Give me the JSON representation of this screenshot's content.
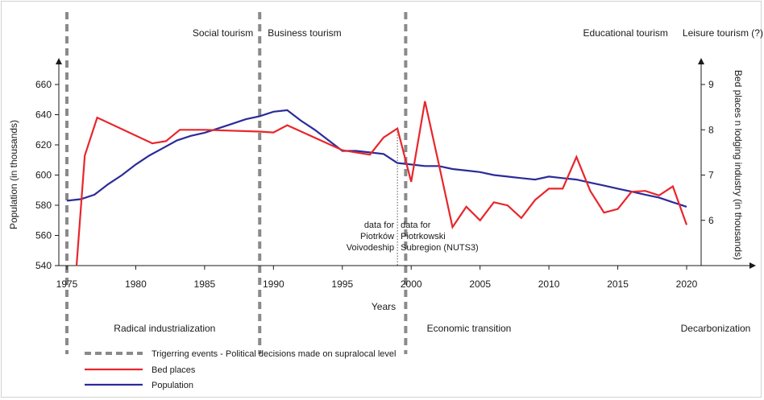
{
  "chart_data": {
    "type": "line",
    "xlabel": "Years",
    "ylabel_left": "Population (in thousands)",
    "ylabel_right": "Bed places n lodging industry (in thousands)",
    "x_ticks": [
      1975,
      1980,
      1985,
      1990,
      1995,
      2000,
      2005,
      2010,
      2015,
      2020
    ],
    "xlim": [
      1975,
      2021
    ],
    "y_left_ticks": [
      540,
      560,
      580,
      600,
      620,
      640,
      660
    ],
    "y_left_range": [
      540,
      660
    ],
    "y_right_ticks": [
      6,
      7,
      8,
      9
    ],
    "y_right_range": [
      5.0,
      9.0
    ],
    "grid": false,
    "series": [
      {
        "name": "Population",
        "axis": "left",
        "color": "#2b2b9a",
        "points": [
          [
            1975,
            583
          ],
          [
            1976,
            584
          ],
          [
            1977,
            587
          ],
          [
            1978,
            594
          ],
          [
            1979,
            600
          ],
          [
            1980,
            607
          ],
          [
            1981,
            613
          ],
          [
            1982,
            618
          ],
          [
            1983,
            623
          ],
          [
            1984,
            626
          ],
          [
            1985,
            628
          ],
          [
            1986,
            631
          ],
          [
            1987,
            634
          ],
          [
            1988,
            637
          ],
          [
            1989,
            639
          ],
          [
            1990,
            642
          ],
          [
            1991,
            643
          ],
          [
            1992,
            636
          ],
          [
            1993,
            630
          ],
          [
            1994,
            623
          ],
          [
            1995,
            616
          ],
          [
            1996,
            616
          ],
          [
            1997,
            615
          ],
          [
            1998,
            614
          ],
          [
            1999,
            608
          ],
          [
            2000,
            607
          ],
          [
            2001,
            606
          ],
          [
            2002,
            606
          ],
          [
            2003,
            604
          ],
          [
            2004,
            603
          ],
          [
            2005,
            602
          ],
          [
            2006,
            600
          ],
          [
            2007,
            599
          ],
          [
            2008,
            598
          ],
          [
            2009,
            597
          ],
          [
            2010,
            599
          ],
          [
            2011,
            598
          ],
          [
            2012,
            597
          ],
          [
            2013,
            595
          ],
          [
            2014,
            593
          ],
          [
            2015,
            591
          ],
          [
            2016,
            589
          ],
          [
            2017,
            587
          ],
          [
            2018,
            585
          ],
          [
            2019,
            582
          ],
          [
            2020,
            579
          ]
        ]
      },
      {
        "name": "Bed places",
        "axis": "right",
        "color": "#e8262c",
        "points": [
          [
            1975.7,
            5.0
          ],
          [
            1976.3,
            7.43
          ],
          [
            1977.2,
            8.27
          ],
          [
            1981.2,
            7.7
          ],
          [
            1982.2,
            7.75
          ],
          [
            1983.2,
            8.0
          ],
          [
            1985,
            8.0
          ],
          [
            1989,
            7.96
          ],
          [
            1990,
            7.94
          ],
          [
            1991,
            8.1
          ],
          [
            1995,
            7.55
          ],
          [
            1996,
            7.5
          ],
          [
            1997,
            7.45
          ],
          [
            1998,
            7.83
          ],
          [
            1999,
            8.03
          ],
          [
            2000,
            6.85
          ],
          [
            2001,
            8.63
          ],
          [
            2002,
            7.25
          ],
          [
            2003,
            5.85
          ],
          [
            2004,
            6.3
          ],
          [
            2005,
            6.0
          ],
          [
            2006,
            6.4
          ],
          [
            2007,
            6.33
          ],
          [
            2008,
            6.05
          ],
          [
            2009,
            6.45
          ],
          [
            2010,
            6.7
          ],
          [
            2011,
            6.7
          ],
          [
            2012,
            7.4
          ],
          [
            2013,
            6.65
          ],
          [
            2014,
            6.17
          ],
          [
            2015,
            6.25
          ],
          [
            2016,
            6.63
          ],
          [
            2017,
            6.65
          ],
          [
            2018,
            6.55
          ],
          [
            2019,
            6.75
          ],
          [
            2020,
            5.9
          ]
        ]
      }
    ],
    "triggering_events": [
      1975,
      1989,
      1999.6
    ],
    "data_source_divider": 1999,
    "phases_top": [
      {
        "label": "Social tourism",
        "x": 1987
      },
      {
        "label": "Business tourism",
        "x": 1989.7
      },
      {
        "label": "Educational tourism",
        "x": 2018.4
      },
      {
        "label": "Leisure tourism (?)",
        "x": 2020.5
      }
    ],
    "phases_bottom": [
      {
        "label": "Radical industrialization",
        "x": 1982
      },
      {
        "label": "Economic transition",
        "x": 2004.2
      },
      {
        "label": "Decarbonization",
        "x": 2022
      }
    ],
    "annotations": [
      {
        "lines": [
          "data for",
          "Piotrków",
          "Voivodeship"
        ],
        "align": "right",
        "x": 1998.5
      },
      {
        "lines": [
          "data for",
          "Piotrkowski",
          "Subregion (NUTS3)"
        ],
        "align": "left",
        "x": 1999.5
      }
    ],
    "legend": [
      {
        "label": "Trigerring events - Political decisions made on supralocal level",
        "color": "#8a8a8a",
        "style": "dashed"
      },
      {
        "label": "Bed places",
        "color": "#e8262c",
        "style": "solid"
      },
      {
        "label": "Population",
        "color": "#2b2b9a",
        "style": "solid"
      }
    ]
  }
}
